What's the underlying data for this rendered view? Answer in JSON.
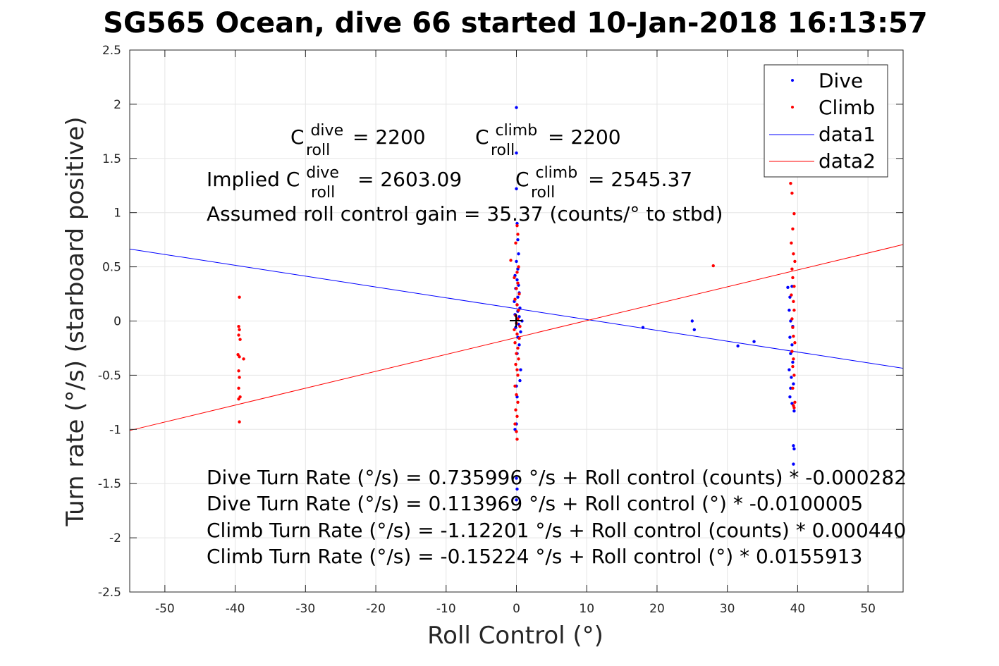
{
  "chart_data": {
    "type": "scatter",
    "title": "SG565 Ocean, dive 66 started 10-Jan-2018 16:13:57",
    "xlabel": "Roll Control (°)",
    "ylabel": "Turn rate (°/s) (starboard positive)",
    "xlim": [
      -55,
      55
    ],
    "ylim": [
      -2.5,
      2.5
    ],
    "xticks": [
      -50,
      -40,
      -30,
      -20,
      -10,
      0,
      10,
      20,
      30,
      40,
      50
    ],
    "yticks": [
      -2.5,
      -2,
      -1.5,
      -1,
      -0.5,
      0,
      0.5,
      1,
      1.5,
      2,
      2.5
    ],
    "grid": true,
    "legend_position": "top-right",
    "legend": [
      "Dive",
      "Climb",
      "data1",
      "data2"
    ],
    "colors": {
      "dive": "#0000ff",
      "climb": "#ff0000",
      "axis": "#262626",
      "grid": "#e5e5e5"
    },
    "series": [
      {
        "name": "Dive",
        "style": "points",
        "color": "#0000ff",
        "points": [
          [
            0,
            1.97
          ],
          [
            0,
            1.55
          ],
          [
            0,
            1.22
          ],
          [
            0.1,
            0.9
          ],
          [
            0.2,
            0.75
          ],
          [
            0.3,
            0.62
          ],
          [
            0,
            0.55
          ],
          [
            0.2,
            0.48
          ],
          [
            -0.2,
            0.42
          ],
          [
            0.1,
            0.38
          ],
          [
            0.3,
            0.33
          ],
          [
            -0.1,
            0.3
          ],
          [
            0.4,
            0.26
          ],
          [
            0.2,
            0.22
          ],
          [
            -0.3,
            0.18
          ],
          [
            0.1,
            0.15
          ],
          [
            0.5,
            0.12
          ],
          [
            0.2,
            0.09
          ],
          [
            -0.2,
            0.06
          ],
          [
            0.4,
            0.04
          ],
          [
            0.1,
            0.02
          ],
          [
            0.8,
            0.0
          ],
          [
            0.3,
            -0.03
          ],
          [
            -0.1,
            -0.06
          ],
          [
            0.6,
            -0.1
          ],
          [
            0.2,
            -0.15
          ],
          [
            0.4,
            -0.22
          ],
          [
            0.1,
            -0.3
          ],
          [
            0.6,
            -0.45
          ],
          [
            0.5,
            -0.55
          ],
          [
            0,
            -0.6
          ],
          [
            0.1,
            -0.7
          ],
          [
            0,
            -0.95
          ],
          [
            -0.2,
            -1.0
          ],
          [
            0,
            -1.45
          ],
          [
            0.1,
            -1.55
          ],
          [
            0,
            -1.65
          ],
          [
            18,
            -0.06
          ],
          [
            25,
            0.0
          ],
          [
            25.3,
            -0.08
          ],
          [
            31.5,
            -0.23
          ],
          [
            33.8,
            -0.19
          ],
          [
            38.6,
            0.31
          ],
          [
            38.9,
            0.22
          ],
          [
            39.2,
            0.32
          ],
          [
            38.8,
            0.1
          ],
          [
            39.0,
            0.0
          ],
          [
            39.3,
            -0.05
          ],
          [
            38.9,
            -0.15
          ],
          [
            39.2,
            -0.22
          ],
          [
            39.0,
            -0.3
          ],
          [
            39.3,
            -0.38
          ],
          [
            38.8,
            -0.45
          ],
          [
            39.1,
            -0.52
          ],
          [
            39.4,
            -0.58
          ],
          [
            39.0,
            -0.62
          ],
          [
            38.9,
            -0.7
          ],
          [
            39.2,
            -0.76
          ],
          [
            39.5,
            -0.83
          ],
          [
            39.4,
            -1.15
          ],
          [
            39.5,
            -1.18
          ],
          [
            39.4,
            -1.32
          ]
        ]
      },
      {
        "name": "Climb",
        "style": "points",
        "color": "#ff0000",
        "points": [
          [
            0.1,
            0.88
          ],
          [
            0.2,
            0.8
          ],
          [
            -0.1,
            0.72
          ],
          [
            -0.8,
            0.56
          ],
          [
            0.3,
            0.5
          ],
          [
            0.1,
            0.45
          ],
          [
            -0.3,
            0.4
          ],
          [
            0.2,
            0.35
          ],
          [
            0,
            0.3
          ],
          [
            0.4,
            0.25
          ],
          [
            -0.2,
            0.2
          ],
          [
            0.1,
            0.15
          ],
          [
            0.3,
            0.1
          ],
          [
            -0.1,
            0.05
          ],
          [
            0.2,
            0.02
          ],
          [
            0,
            -0.02
          ],
          [
            0.5,
            -0.05
          ],
          [
            -0.3,
            -0.08
          ],
          [
            0.1,
            -0.12
          ],
          [
            0.4,
            -0.16
          ],
          [
            -0.2,
            -0.2
          ],
          [
            0.2,
            -0.25
          ],
          [
            0,
            -0.3
          ],
          [
            0.3,
            -0.35
          ],
          [
            -0.1,
            -0.4
          ],
          [
            0.1,
            -0.45
          ],
          [
            0.2,
            -0.5
          ],
          [
            -0.2,
            -0.6
          ],
          [
            0,
            -0.68
          ],
          [
            0.2,
            -0.75
          ],
          [
            -0.1,
            -0.82
          ],
          [
            0.1,
            -0.88
          ],
          [
            -0.2,
            -0.95
          ],
          [
            0,
            -1.02
          ],
          [
            0.1,
            -1.09
          ],
          [
            -39.4,
            0.22
          ],
          [
            -39.5,
            -0.05
          ],
          [
            -39.4,
            -0.08
          ],
          [
            -39.5,
            -0.13
          ],
          [
            -39.3,
            -0.17
          ],
          [
            -39.6,
            -0.31
          ],
          [
            -39.4,
            -0.33
          ],
          [
            -38.8,
            -0.35
          ],
          [
            -39.5,
            -0.46
          ],
          [
            -39.4,
            -0.52
          ],
          [
            -39.5,
            -0.62
          ],
          [
            -39.3,
            -0.7
          ],
          [
            -39.5,
            -0.72
          ],
          [
            -39.4,
            -0.93
          ],
          [
            28,
            0.51
          ],
          [
            39,
            1.27
          ],
          [
            39.2,
            1.18
          ],
          [
            39.5,
            0.99
          ],
          [
            39.3,
            0.85
          ],
          [
            39.1,
            0.72
          ],
          [
            39.4,
            0.62
          ],
          [
            39.6,
            0.55
          ],
          [
            39.2,
            0.48
          ],
          [
            39.3,
            0.4
          ],
          [
            39.5,
            0.32
          ],
          [
            39.1,
            0.24
          ],
          [
            39.4,
            0.18
          ],
          [
            39.5,
            0.1
          ],
          [
            39.2,
            0.02
          ],
          [
            39.3,
            -0.06
          ],
          [
            39.4,
            -0.14
          ],
          [
            39.6,
            -0.2
          ],
          [
            39.2,
            -0.28
          ],
          [
            39.4,
            -0.35
          ],
          [
            39.3,
            -0.42
          ],
          [
            39.5,
            -0.5
          ],
          [
            39.3,
            -0.62
          ],
          [
            39.6,
            -0.75
          ],
          [
            39.4,
            -0.78
          ],
          [
            39.5,
            -0.8
          ]
        ]
      },
      {
        "name": "data1",
        "style": "line",
        "color": "#0000ff",
        "intercept": 0.113969,
        "slope": -0.0100005,
        "x": [
          -55,
          55
        ]
      },
      {
        "name": "data2",
        "style": "line",
        "color": "#ff0000",
        "intercept": -0.15224,
        "slope": 0.0155913,
        "x": [
          -55,
          55
        ]
      }
    ],
    "annotations": {
      "c_dive_label": "C",
      "c_dive_sup": "dive",
      "c_dive_sub": "roll",
      "c_dive_value": "= 2200",
      "c_climb_label": "C",
      "c_climb_sup": "climb",
      "c_climb_sub": "roll",
      "c_climb_value": "= 2200",
      "implied_prefix": "Implied C",
      "implied_dive_sup": "dive",
      "implied_dive_sub": "roll",
      "implied_dive_value": "= 2603.09",
      "implied_climb_label": "C",
      "implied_climb_sup": "climb",
      "implied_climb_sub": "roll",
      "implied_climb_value": "= 2545.37",
      "gain": "Assumed roll control gain = 35.37 (counts/° to stbd)",
      "fit_1": "Dive Turn Rate (°/s) = 0.735996 °/s + Roll control (counts) * -0.000282",
      "fit_2": "Dive Turn Rate (°/s) = 0.113969 °/s + Roll control (°) * -0.0100005",
      "fit_3": "Climb Turn Rate (°/s) = -1.12201 °/s + Roll control (counts) * 0.000440",
      "fit_4": "Climb Turn Rate (°/s) = -0.15224 °/s + Roll control (°) * 0.0155913"
    }
  }
}
